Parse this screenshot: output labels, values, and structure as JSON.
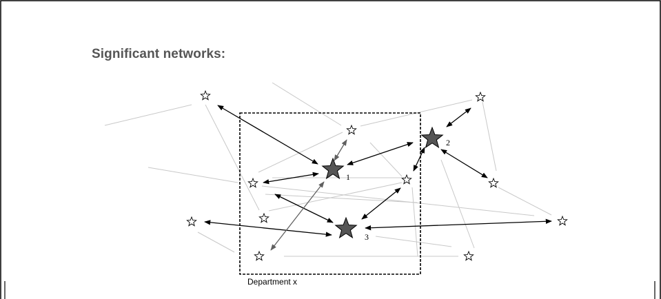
{
  "title": "Significant networks:",
  "department_label": "Department x",
  "hubs": [
    {
      "id": "hub-1",
      "label": "1"
    },
    {
      "id": "hub-2",
      "label": "2"
    },
    {
      "id": "hub-3",
      "label": "3"
    }
  ],
  "colors": {
    "hub_fill": "#555555",
    "peer_fill": "#ffffff",
    "stroke": "#000000",
    "weak_link": "#c8c8c8",
    "strong_link": "#000000",
    "gray_link": "#606060",
    "title": "#555555"
  }
}
